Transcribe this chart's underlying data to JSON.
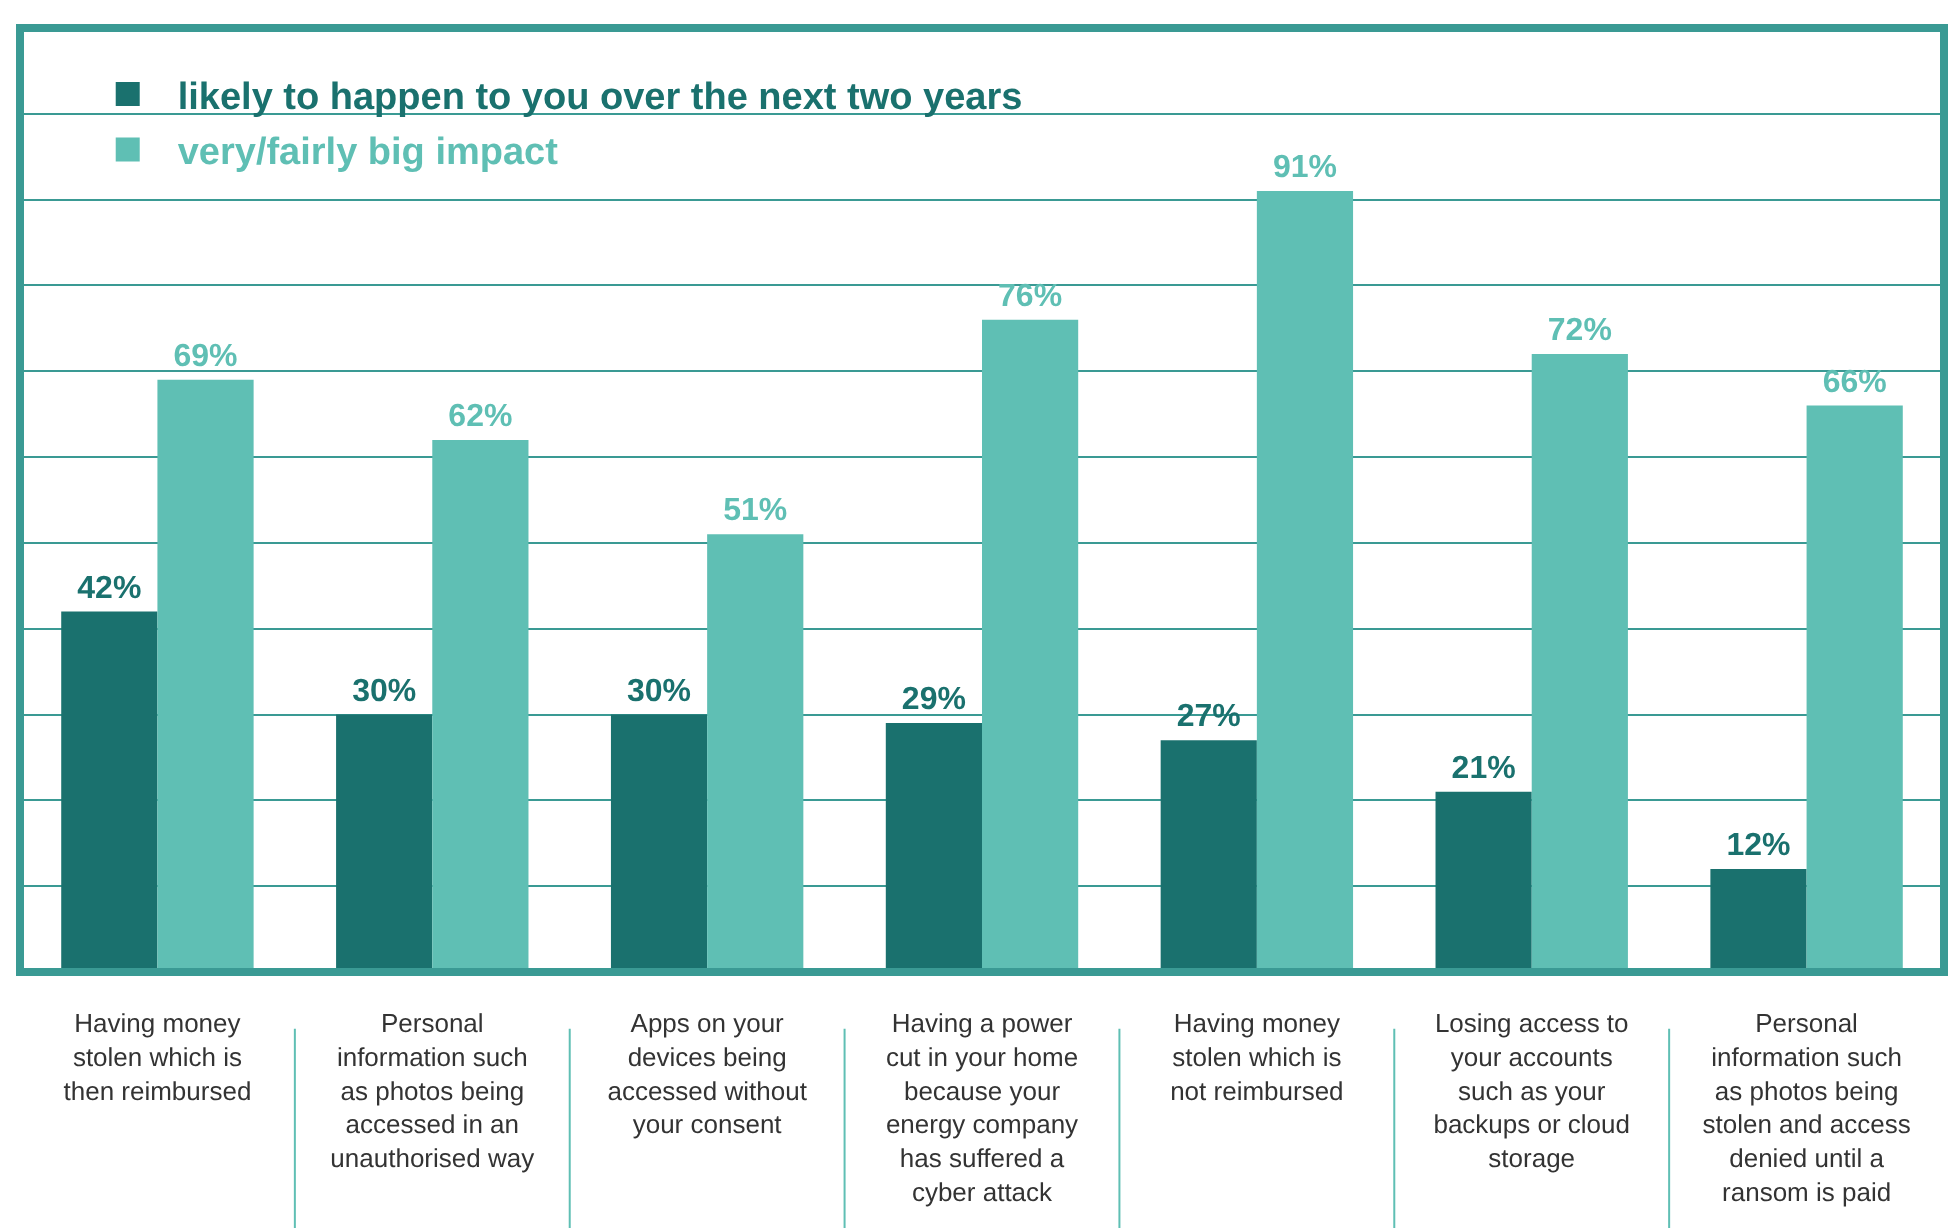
{
  "chart_data": {
    "type": "bar",
    "categories": [
      "Having money stolen which is then reimbursed",
      "Personal information such as photos being accessed in an unauthorised way",
      "Apps on your devices being accessed without your consent",
      "Having a power cut in your home because your energy company has suffered a cyber attack",
      "Having money stolen which is not reimbursed",
      "Losing access to your accounts such as your backups or cloud storage",
      "Personal information such as photos being stolen and access denied until a ransom is paid"
    ],
    "series": [
      {
        "name": "likely to happen to you over the next two years",
        "color": "#1a716e",
        "values": [
          42,
          30,
          30,
          29,
          27,
          21,
          12
        ],
        "value_labels": [
          "42%",
          "30%",
          "30%",
          "29%",
          "27%",
          "21%",
          "12%"
        ]
      },
      {
        "name": "very/fairly big impact",
        "color": "#5fbfb4",
        "values": [
          69,
          62,
          51,
          76,
          91,
          72,
          66
        ],
        "value_labels": [
          "69%",
          "62%",
          "51%",
          "76%",
          "91%",
          "72%",
          "66%"
        ]
      }
    ],
    "ylim": [
      0,
      110
    ],
    "yticks": [
      0,
      10,
      20,
      30,
      40,
      50,
      60,
      70,
      80,
      90,
      100
    ],
    "grid": "y",
    "tick_labels": "x",
    "legend": "top left"
  }
}
